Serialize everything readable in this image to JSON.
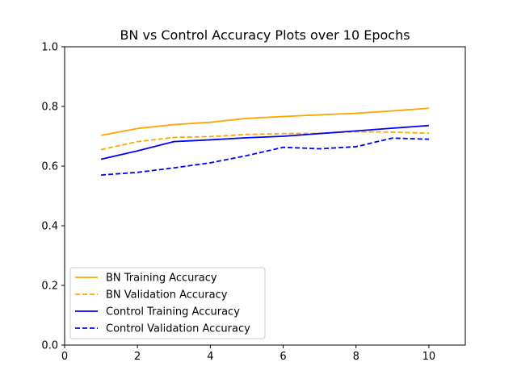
{
  "chart_data": {
    "type": "line",
    "title": "BN vs Control Accuracy Plots over 10 Epochs",
    "xlabel": "",
    "ylabel": "",
    "xlim": [
      0,
      11
    ],
    "ylim": [
      0.0,
      1.0
    ],
    "xticks": [
      0,
      2,
      4,
      6,
      8,
      10
    ],
    "yticks": [
      0.0,
      0.2,
      0.4,
      0.6,
      0.8,
      1.0
    ],
    "xtick_labels": [
      "0",
      "2",
      "4",
      "6",
      "8",
      "10"
    ],
    "ytick_labels": [
      "0.0",
      "0.2",
      "0.4",
      "0.6",
      "0.8",
      "1.0"
    ],
    "grid": false,
    "legend_position": "lower-left",
    "x": [
      1,
      2,
      3,
      4,
      5,
      6,
      7,
      8,
      9,
      10
    ],
    "series": [
      {
        "name": "BN Training Accuracy",
        "color": "#ffa500",
        "style": "solid",
        "values": [
          0.703,
          0.726,
          0.739,
          0.747,
          0.76,
          0.766,
          0.772,
          0.777,
          0.785,
          0.794
        ]
      },
      {
        "name": "BN Validation Accuracy",
        "color": "#ffa500",
        "style": "dashed",
        "values": [
          0.655,
          0.682,
          0.696,
          0.699,
          0.706,
          0.709,
          0.71,
          0.715,
          0.714,
          0.71
        ]
      },
      {
        "name": "Control Training Accuracy",
        "color": "#0000ff",
        "style": "solid",
        "values": [
          0.623,
          0.651,
          0.682,
          0.688,
          0.695,
          0.7,
          0.709,
          0.718,
          0.727,
          0.736
        ]
      },
      {
        "name": "Control Validation Accuracy",
        "color": "#0000ff",
        "style": "dashed",
        "values": [
          0.57,
          0.579,
          0.594,
          0.611,
          0.635,
          0.663,
          0.658,
          0.665,
          0.694,
          0.69
        ]
      }
    ]
  }
}
